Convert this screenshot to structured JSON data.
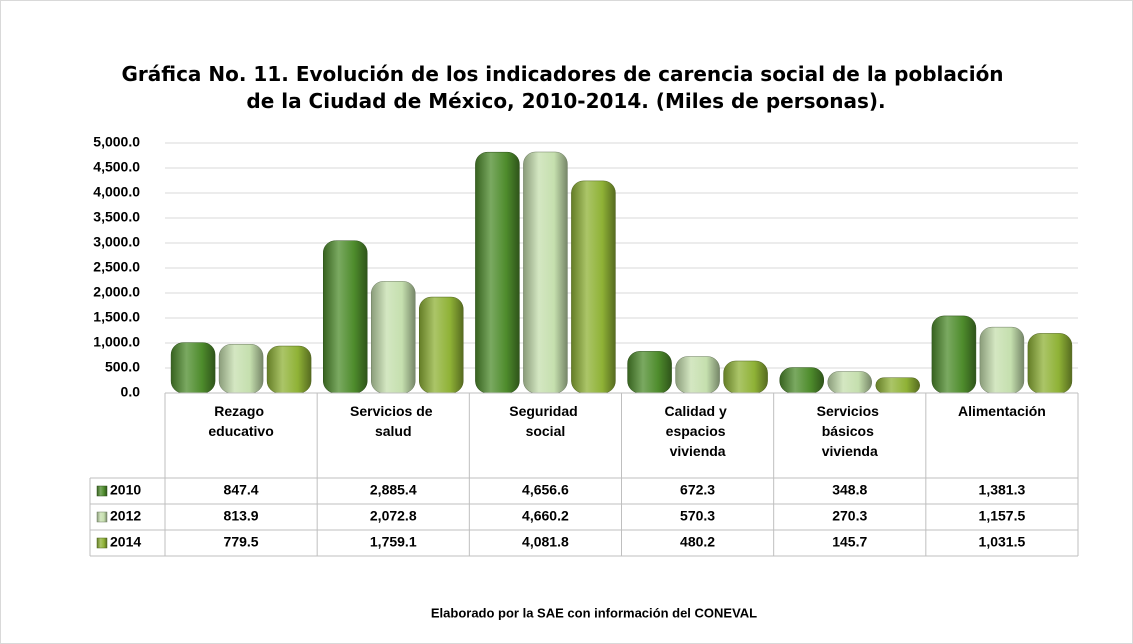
{
  "chart_data": {
    "type": "bar",
    "title": "Gráfica No. 11. Evolución de los indicadores de carencia social de la población de la Ciudad de México, 2010-2014. (Miles de personas).",
    "categories": [
      "Rezago educativo",
      "Servicios de salud",
      "Seguridad social",
      "Calidad y espacios vivienda",
      "Servicios básicos vivienda",
      "Alimentación"
    ],
    "series": [
      {
        "name": "2010",
        "color": "#4e8c2c",
        "values": [
          847.4,
          2885.4,
          4656.6,
          672.3,
          348.8,
          1381.3
        ],
        "value_labels": [
          "847.4",
          "2,885.4",
          "4,656.6",
          "672.3",
          "348.8",
          "1,381.3"
        ]
      },
      {
        "name": "2012",
        "color": "#c5dfae",
        "values": [
          813.9,
          2072.8,
          4660.2,
          570.3,
          270.3,
          1157.5
        ],
        "value_labels": [
          "813.9",
          "2,072.8",
          "4,660.2",
          "570.3",
          "270.3",
          "1,157.5"
        ]
      },
      {
        "name": "2014",
        "color": "#8fb236",
        "values": [
          779.5,
          1759.1,
          4081.8,
          480.2,
          145.7,
          1031.5
        ],
        "value_labels": [
          "779.5",
          "1,759.1",
          "4,081.8",
          "480.2",
          "145.7",
          "1,031.5"
        ]
      }
    ],
    "ylim": [
      0,
      5000
    ],
    "yticks": [
      {
        "value": 0,
        "label": "0.0"
      },
      {
        "value": 500,
        "label": "500.0"
      },
      {
        "value": 1000,
        "label": "1,000.0"
      },
      {
        "value": 1500,
        "label": "1,500.0"
      },
      {
        "value": 2000,
        "label": "2,000.0"
      },
      {
        "value": 2500,
        "label": "2,500.0"
      },
      {
        "value": 3000,
        "label": "3,000.0"
      },
      {
        "value": 3500,
        "label": "3,500.0"
      },
      {
        "value": 4000,
        "label": "4,000.0"
      },
      {
        "value": 4500,
        "label": "4,500.0"
      },
      {
        "value": 5000,
        "label": "5,000.0"
      }
    ],
    "grid": true,
    "note": "Elaborado por la SAE con información del CONEVAL"
  }
}
